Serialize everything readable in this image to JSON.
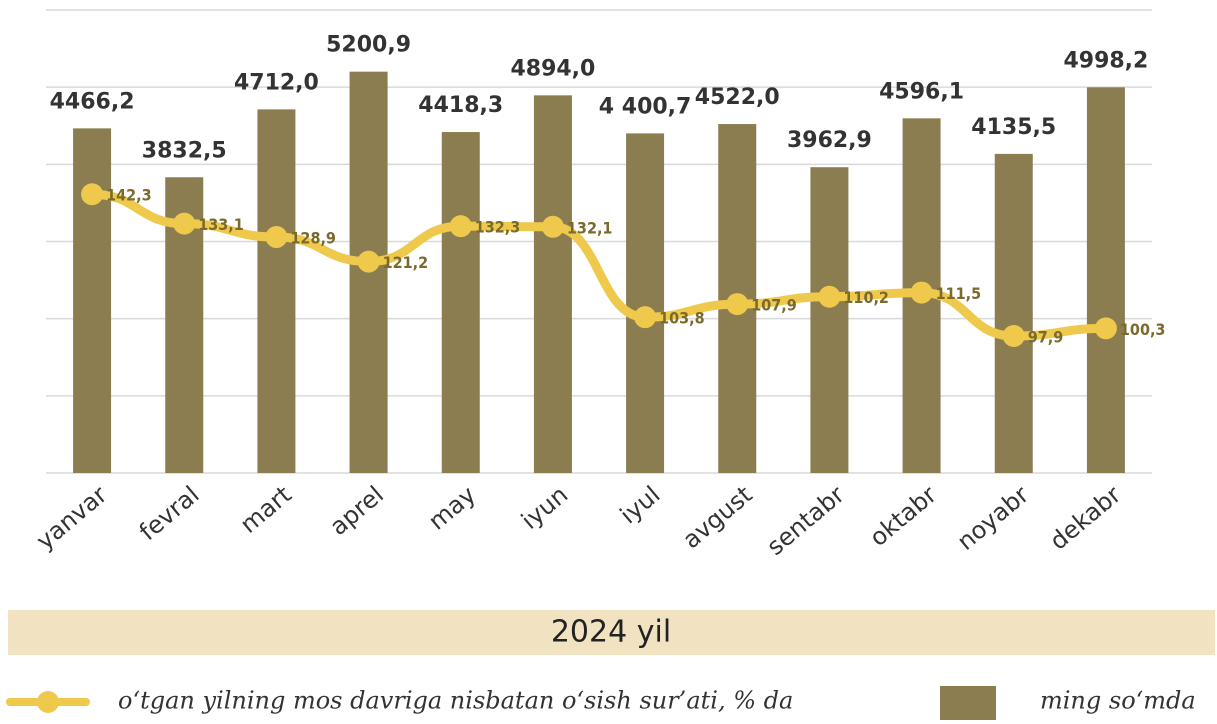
{
  "chart_data": {
    "type": "bar-line",
    "x_label": "2024 yil",
    "categories": [
      "yanvar",
      "fevral",
      "mart",
      "aprel",
      "may",
      "iyun",
      "iyul",
      "avgust",
      "sentabr",
      "oktabr",
      "noyabr",
      "dekabr"
    ],
    "series": [
      {
        "name": "ming so‘mda",
        "type": "bar",
        "axis": "y",
        "color": "#8b7d4f",
        "values": [
          4466.2,
          3832.5,
          4712.0,
          5200.9,
          4418.3,
          4894.0,
          4400.7,
          4522.0,
          3962.9,
          4596.1,
          4135.5,
          4998.2
        ],
        "value_labels": [
          "4466,2",
          "3832,5",
          "4712,0",
          "5200,9",
          "4418,3",
          "4894,0",
          "4 400,7",
          "4522,0",
          "3962,9",
          "4596,1",
          "4135,5",
          "4998,2"
        ]
      },
      {
        "name": "o‘tgan yilning mos davriga nisbatan o‘sish sur’ati, % da",
        "type": "line",
        "axis": "y2",
        "color": "#efc94c",
        "values": [
          142.3,
          133.1,
          128.9,
          121.2,
          132.3,
          132.1,
          103.8,
          107.9,
          110.2,
          111.5,
          97.9,
          100.3
        ],
        "value_labels": [
          "142,3",
          "133,1",
          "128,9",
          "121,2",
          "132,3",
          "132,1",
          "103,8",
          "107,9",
          "110,2",
          "111,5",
          "97,9",
          "100,3"
        ]
      }
    ],
    "ylim": [
      0,
      6000
    ],
    "yticks": [
      0,
      1000,
      2000,
      3000,
      4000,
      5000,
      6000
    ],
    "y2lim": [
      55,
      200
    ],
    "grid": true
  }
}
